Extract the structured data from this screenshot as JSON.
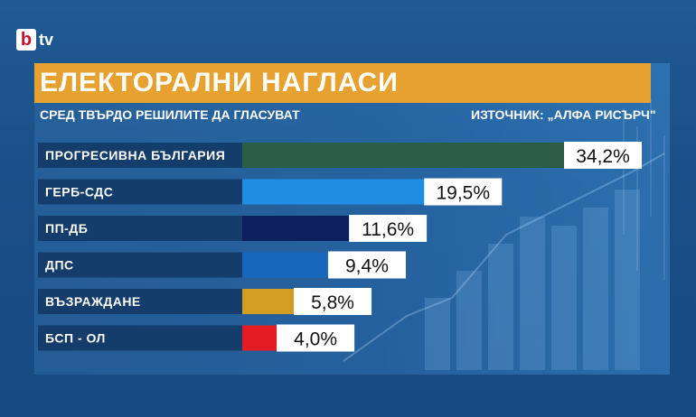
{
  "brand": {
    "mark": "b",
    "name": "tv"
  },
  "title": "ЕЛЕКТОРАЛНИ НАГЛАСИ",
  "subtitle": "СРЕД ТВЪРДО РЕШИЛИТЕ ДА ГЛАСУВАТ",
  "source": "ИЗТОЧНИК: „АЛФА РИСЪРЧ\"",
  "colors": {
    "accent": "#e6a12e",
    "background": "#1a4f86",
    "label_bar": "#143d6b"
  },
  "chart_data": {
    "type": "bar",
    "orientation": "horizontal",
    "categories": [
      "ПРОГРЕСИВНА БЪЛГАРИЯ",
      "ГЕРБ-СДС",
      "ПП-ДБ",
      "ДПС",
      "ВЪЗРАЖДАНЕ",
      "БСП - ОЛ"
    ],
    "values": [
      34.2,
      19.5,
      11.6,
      9.4,
      5.8,
      4.0
    ],
    "value_labels": [
      "34,2%",
      "19,5%",
      "11,6%",
      "9,4%",
      "5,8%",
      "4,0%"
    ],
    "colors": [
      "#2b5e45",
      "#1f8fe3",
      "#0d1f5e",
      "#1668bd",
      "#d19d22",
      "#e41c23"
    ],
    "unit": "%"
  }
}
